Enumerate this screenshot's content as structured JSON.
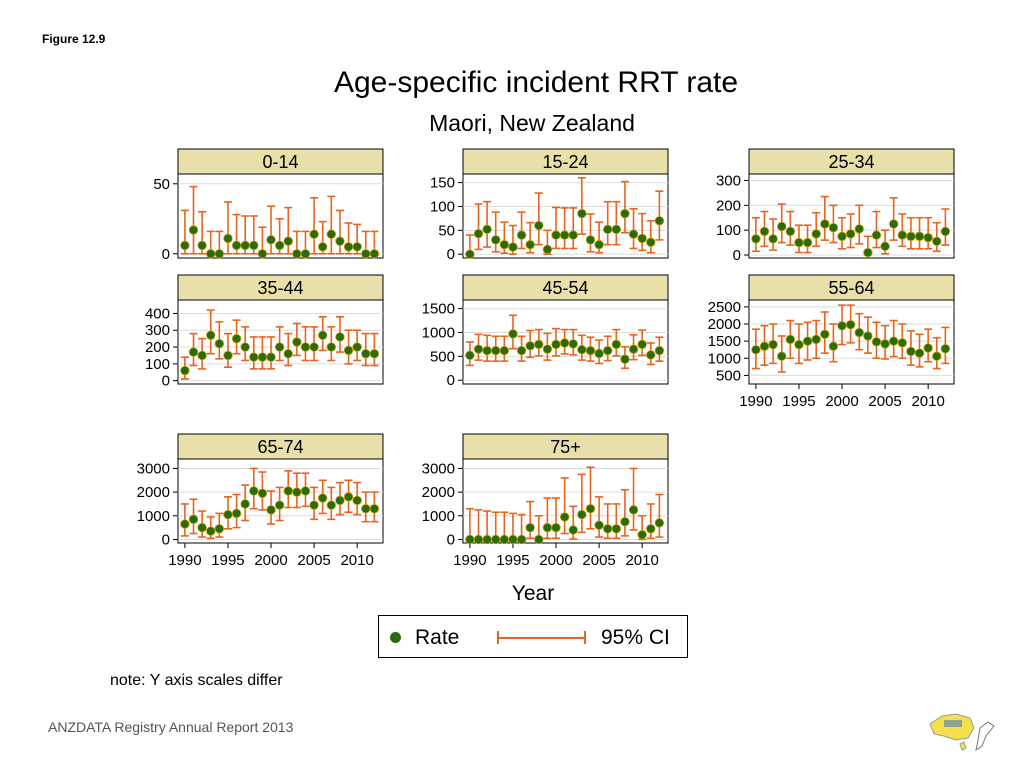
{
  "figure_label": "Figure 12.9",
  "title": "Age-specific incident RRT rate",
  "subtitle": "Maori, New Zealand",
  "xlabel": "Year",
  "legend": {
    "rate_label": "Rate",
    "ci_label": "95% CI"
  },
  "note": "note: Y axis scales differ",
  "footer": "ANZDATA Registry Annual Report 2013",
  "colors": {
    "point": "#2a6b0c",
    "ci": "#e8641e",
    "strip": "#e8dfaa",
    "grid": "#dcdcdc"
  },
  "chart_data": {
    "type": "scatter",
    "title": "Age-specific incident RRT rate",
    "subtitle": "Maori, New Zealand",
    "xlabel": "Year",
    "ylabel": "",
    "x": [
      1990,
      1991,
      1992,
      1993,
      1994,
      1995,
      1996,
      1997,
      1998,
      1999,
      2000,
      2001,
      2002,
      2003,
      2004,
      2005,
      2006,
      2007,
      2008,
      2009,
      2010,
      2011,
      2012
    ],
    "xticks": [
      1990,
      1995,
      2000,
      2005,
      2010
    ],
    "legend": [
      "Rate",
      "95% CI"
    ],
    "grid": true,
    "panels": [
      {
        "name": "0-14",
        "ylim": [
          -3,
          57
        ],
        "yticks": [
          0,
          50
        ],
        "show_xaxis": false,
        "rate": [
          6,
          17,
          6,
          0,
          0,
          11,
          6,
          6,
          6,
          0,
          10,
          6,
          9,
          0,
          0,
          14,
          5,
          14,
          9,
          5,
          5,
          0,
          0
        ],
        "lower": [
          0,
          0,
          0,
          0,
          0,
          0,
          0,
          0,
          0,
          0,
          0,
          0,
          0,
          0,
          0,
          0,
          0,
          0,
          0,
          0,
          0,
          0,
          0
        ],
        "upper": [
          31,
          48,
          30,
          16,
          16,
          37,
          28,
          27,
          27,
          19,
          34,
          25,
          33,
          16,
          16,
          40,
          23,
          41,
          31,
          22,
          21,
          16,
          16
        ]
      },
      {
        "name": "15-24",
        "ylim": [
          -8,
          168
        ],
        "yticks": [
          0,
          50,
          100,
          150
        ],
        "show_xaxis": false,
        "rate": [
          0,
          43,
          52,
          30,
          20,
          15,
          40,
          20,
          60,
          10,
          40,
          40,
          40,
          85,
          30,
          20,
          52,
          52,
          85,
          42,
          33,
          25,
          70
        ],
        "lower": [
          0,
          10,
          15,
          5,
          2,
          0,
          12,
          3,
          20,
          0,
          12,
          12,
          12,
          42,
          5,
          3,
          20,
          20,
          45,
          12,
          8,
          3,
          30
        ],
        "upper": [
          40,
          105,
          110,
          88,
          67,
          60,
          88,
          66,
          128,
          50,
          98,
          97,
          97,
          160,
          84,
          67,
          110,
          110,
          152,
          95,
          85,
          70,
          132
        ]
      },
      {
        "name": "25-34",
        "ylim": [
          -12,
          326
        ],
        "yticks": [
          0,
          100,
          200,
          300
        ],
        "show_xaxis": false,
        "rate": [
          65,
          95,
          65,
          115,
          95,
          50,
          50,
          85,
          125,
          110,
          75,
          85,
          105,
          10,
          80,
          35,
          125,
          80,
          75,
          75,
          70,
          55,
          95
        ],
        "lower": [
          15,
          35,
          20,
          50,
          40,
          10,
          10,
          35,
          60,
          50,
          25,
          30,
          45,
          0,
          30,
          5,
          60,
          35,
          25,
          25,
          25,
          15,
          40
        ],
        "upper": [
          150,
          175,
          145,
          205,
          175,
          120,
          120,
          170,
          235,
          200,
          150,
          165,
          200,
          75,
          175,
          100,
          230,
          165,
          150,
          150,
          150,
          130,
          185
        ]
      },
      {
        "name": "35-44",
        "ylim": [
          -20,
          480
        ],
        "yticks": [
          0,
          100,
          200,
          300,
          400
        ],
        "show_xaxis": false,
        "rate": [
          60,
          170,
          150,
          270,
          220,
          150,
          250,
          200,
          140,
          140,
          140,
          200,
          160,
          230,
          200,
          200,
          270,
          200,
          260,
          180,
          200,
          160,
          160
        ],
        "lower": [
          10,
          90,
          70,
          160,
          130,
          80,
          160,
          120,
          70,
          70,
          70,
          120,
          90,
          150,
          120,
          120,
          180,
          120,
          170,
          100,
          120,
          90,
          90
        ],
        "upper": [
          140,
          280,
          250,
          420,
          350,
          280,
          360,
          320,
          260,
          260,
          260,
          320,
          280,
          340,
          320,
          320,
          380,
          320,
          380,
          300,
          300,
          280,
          280
        ]
      },
      {
        "name": "45-54",
        "ylim": [
          -80,
          1680
        ],
        "yticks": [
          0,
          500,
          1000,
          1500
        ],
        "show_xaxis": false,
        "rate": [
          520,
          650,
          620,
          620,
          620,
          970,
          620,
          720,
          750,
          650,
          750,
          780,
          760,
          640,
          620,
          560,
          620,
          750,
          440,
          650,
          750,
          530,
          620
        ],
        "lower": [
          310,
          420,
          400,
          400,
          400,
          660,
          400,
          480,
          510,
          420,
          510,
          550,
          530,
          420,
          400,
          350,
          410,
          510,
          250,
          430,
          520,
          330,
          400
        ],
        "upper": [
          800,
          960,
          940,
          920,
          920,
          1360,
          920,
          1040,
          1060,
          980,
          1080,
          1060,
          1060,
          940,
          900,
          840,
          920,
          1060,
          700,
          950,
          1050,
          780,
          900
        ]
      },
      {
        "name": "55-64",
        "ylim": [
          250,
          2700
        ],
        "yticks": [
          500,
          1000,
          1500,
          2000,
          2500
        ],
        "show_xaxis": true,
        "rate": [
          1250,
          1350,
          1400,
          1060,
          1550,
          1400,
          1500,
          1550,
          1700,
          1350,
          1950,
          1980,
          1750,
          1650,
          1480,
          1420,
          1500,
          1450,
          1200,
          1150,
          1300,
          1060,
          1280
        ],
        "lower": [
          700,
          800,
          850,
          600,
          1000,
          850,
          950,
          1000,
          1150,
          900,
          1400,
          1450,
          1250,
          1150,
          1000,
          980,
          1050,
          1000,
          800,
          750,
          900,
          700,
          850
        ],
        "upper": [
          1850,
          1950,
          2000,
          1650,
          2100,
          2000,
          2050,
          2100,
          2350,
          2000,
          2550,
          2550,
          2300,
          2200,
          2050,
          1950,
          2100,
          2000,
          1800,
          1700,
          1850,
          1600,
          1900
        ]
      },
      {
        "name": "65-74",
        "ylim": [
          -150,
          3400
        ],
        "yticks": [
          0,
          1000,
          2000,
          3000
        ],
        "show_xaxis": true,
        "rate": [
          650,
          850,
          500,
          350,
          450,
          1050,
          1100,
          1500,
          2050,
          1950,
          1250,
          1450,
          2050,
          2000,
          2050,
          1450,
          1750,
          1450,
          1650,
          1800,
          1650,
          1300,
          1300
        ],
        "lower": [
          150,
          250,
          100,
          50,
          100,
          450,
          500,
          800,
          1300,
          1250,
          650,
          800,
          1350,
          1350,
          1400,
          850,
          1100,
          850,
          1050,
          1150,
          1050,
          750,
          750
        ],
        "upper": [
          1500,
          1700,
          1200,
          950,
          1100,
          1800,
          1900,
          2300,
          3000,
          2850,
          2050,
          2200,
          2900,
          2800,
          2800,
          2200,
          2500,
          2200,
          2400,
          2500,
          2400,
          2000,
          2000
        ]
      },
      {
        "name": "75+",
        "ylim": [
          -150,
          3400
        ],
        "yticks": [
          0,
          1000,
          2000,
          3000
        ],
        "show_xaxis": true,
        "rate": [
          0,
          0,
          0,
          0,
          0,
          0,
          0,
          500,
          0,
          500,
          500,
          950,
          400,
          1050,
          1300,
          600,
          450,
          450,
          750,
          1250,
          200,
          450,
          700
        ],
        "lower": [
          0,
          0,
          0,
          0,
          0,
          0,
          0,
          50,
          0,
          50,
          50,
          250,
          20,
          300,
          450,
          100,
          50,
          50,
          150,
          400,
          0,
          50,
          100
        ],
        "upper": [
          1300,
          1250,
          1200,
          1150,
          1150,
          1100,
          1050,
          1600,
          1000,
          1750,
          1750,
          2600,
          1400,
          2750,
          3050,
          1800,
          1500,
          1500,
          2100,
          3000,
          1000,
          1500,
          1900
        ]
      }
    ]
  }
}
